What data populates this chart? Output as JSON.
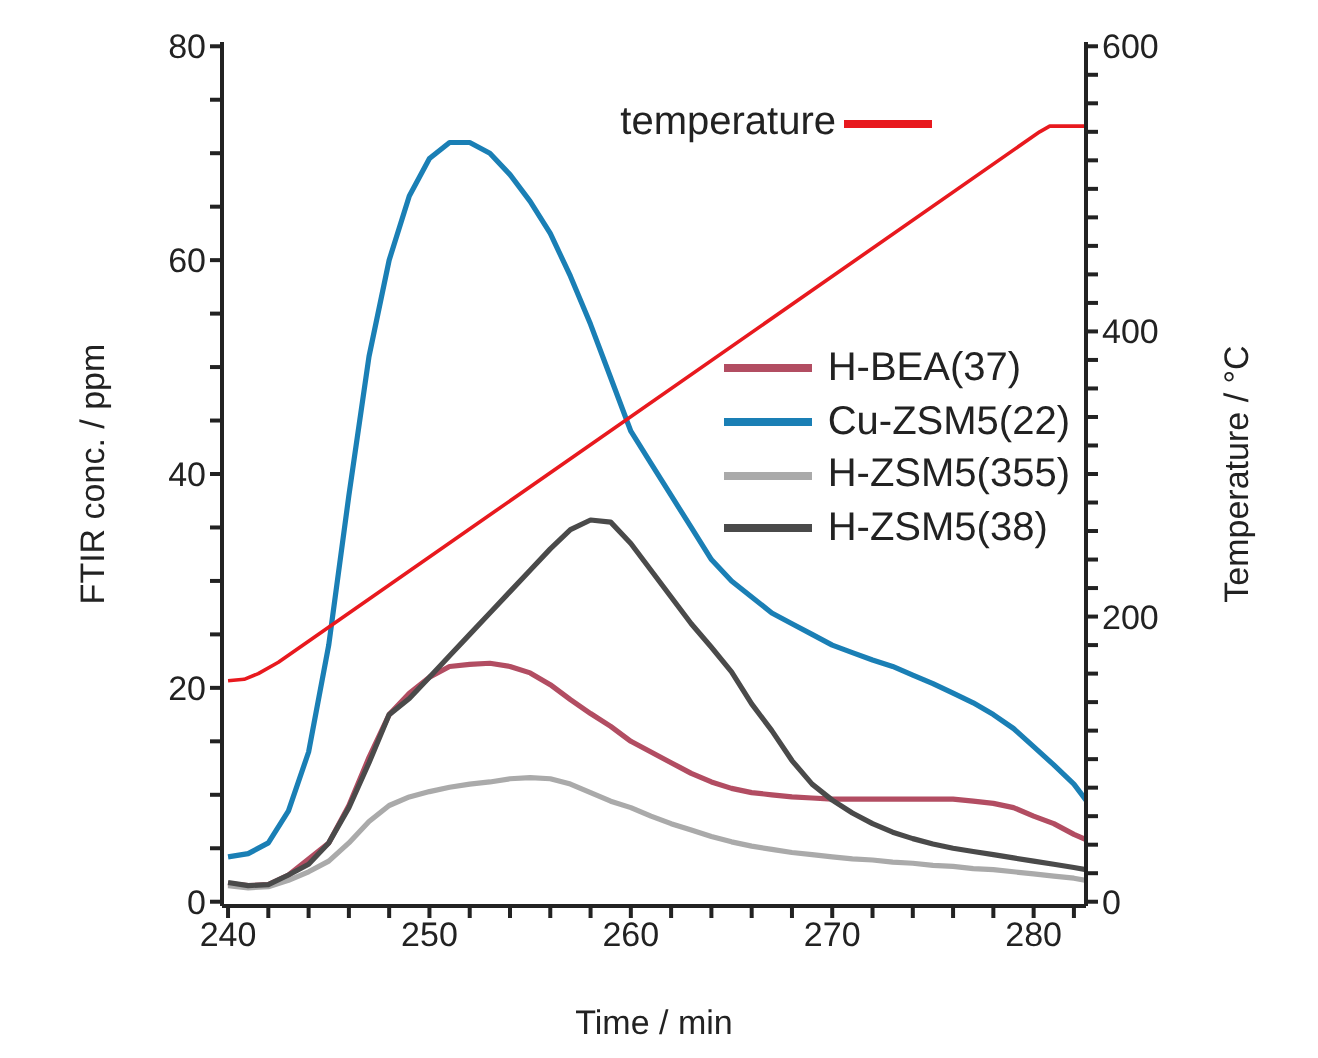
{
  "chart_data": {
    "type": "line",
    "xlabel": "Time / min",
    "ylabel": "FTIR conc. / ppm",
    "y2label": "Temperature / °C",
    "xlim": [
      239.7,
      282.6
    ],
    "ylim": [
      -0.4,
      80.4
    ],
    "y2lim": [
      -3,
      603
    ],
    "xticks": [
      240,
      {
        "value": 242,
        "label": null
      },
      {
        "value": 244,
        "label": null
      },
      {
        "value": 246,
        "label": null
      },
      {
        "value": 248,
        "label": null
      },
      250,
      {
        "value": 252,
        "label": null
      },
      {
        "value": 254,
        "label": null
      },
      {
        "value": 256,
        "label": null
      },
      {
        "value": 258,
        "label": null
      },
      260,
      {
        "value": 262,
        "label": null
      },
      {
        "value": 264,
        "label": null
      },
      {
        "value": 266,
        "label": null
      },
      {
        "value": 268,
        "label": null
      },
      270,
      {
        "value": 272,
        "label": null
      },
      {
        "value": 274,
        "label": null
      },
      {
        "value": 276,
        "label": null
      },
      {
        "value": 278,
        "label": null
      },
      280,
      {
        "value": 282,
        "label": null
      }
    ],
    "yticks": [
      0,
      {
        "value": 5,
        "label": null
      },
      {
        "value": 10,
        "label": null
      },
      {
        "value": 15,
        "label": null
      },
      20,
      {
        "value": 25,
        "label": null
      },
      {
        "value": 30,
        "label": null
      },
      {
        "value": 35,
        "label": null
      },
      40,
      {
        "value": 45,
        "label": null
      },
      {
        "value": 50,
        "label": null
      },
      {
        "value": 55,
        "label": null
      },
      60,
      {
        "value": 65,
        "label": null
      },
      {
        "value": 70,
        "label": null
      },
      {
        "value": 75,
        "label": null
      },
      80
    ],
    "y2ticks": [
      0,
      {
        "value": 20,
        "label": null
      },
      {
        "value": 40,
        "label": null
      },
      {
        "value": 60,
        "label": null
      },
      {
        "value": 80,
        "label": null
      },
      {
        "value": 100,
        "label": null
      },
      {
        "value": 120,
        "label": null
      },
      {
        "value": 140,
        "label": null
      },
      {
        "value": 160,
        "label": null
      },
      {
        "value": 180,
        "label": null
      },
      200,
      {
        "value": 220,
        "label": null
      },
      {
        "value": 240,
        "label": null
      },
      {
        "value": 260,
        "label": null
      },
      {
        "value": 280,
        "label": null
      },
      {
        "value": 300,
        "label": null
      },
      {
        "value": 320,
        "label": null
      },
      {
        "value": 340,
        "label": null
      },
      {
        "value": 360,
        "label": null
      },
      {
        "value": 380,
        "label": null
      },
      400,
      {
        "value": 420,
        "label": null
      },
      {
        "value": 440,
        "label": null
      },
      {
        "value": 460,
        "label": null
      },
      {
        "value": 480,
        "label": null
      },
      {
        "value": 500,
        "label": null
      },
      {
        "value": 520,
        "label": null
      },
      {
        "value": 540,
        "label": null
      },
      {
        "value": 560,
        "label": null
      },
      {
        "value": 580,
        "label": null
      },
      600
    ],
    "legend": "right",
    "marker": "none",
    "grid": false,
    "x": [
      240,
      241,
      242,
      243,
      244,
      245,
      246,
      247,
      248,
      249,
      250,
      251,
      252,
      253,
      254,
      255,
      256,
      257,
      258,
      259,
      260,
      261,
      262,
      263,
      264,
      265,
      266,
      267,
      268,
      269,
      270,
      271,
      272,
      273,
      274,
      275,
      276,
      277,
      278,
      279,
      280,
      281,
      282,
      282.6
    ],
    "series": [
      {
        "name": "H-BEA(37)",
        "color": "#b24d62",
        "values": [
          1.7,
          1.5,
          1.6,
          2.5,
          4,
          5.5,
          9,
          13.5,
          17.5,
          19.5,
          21,
          22,
          22.2,
          22.3,
          22,
          21.4,
          20.3,
          18.9,
          17.6,
          16.4,
          15,
          14,
          13,
          12,
          11.2,
          10.6,
          10.2,
          10,
          9.8,
          9.7,
          9.6,
          9.6,
          9.6,
          9.6,
          9.6,
          9.6,
          9.6,
          9.4,
          9.2,
          8.8,
          8,
          7.3,
          6.3,
          5.8
        ]
      },
      {
        "name": "Cu-ZSM5(22)",
        "color": "#1a7fb5",
        "values": [
          4.2,
          4.5,
          5.5,
          8.5,
          14,
          24,
          38,
          51,
          60,
          66,
          69.5,
          71,
          71,
          70,
          68,
          65.5,
          62.5,
          58.5,
          54,
          49,
          44,
          41,
          38,
          35,
          32,
          30,
          28.5,
          27,
          26,
          25,
          24,
          23.3,
          22.6,
          22,
          21.2,
          20.4,
          19.5,
          18.6,
          17.5,
          16.2,
          14.5,
          12.8,
          11,
          9.5
        ]
      },
      {
        "name": "H-ZSM5(355)",
        "color": "#aaaaaa",
        "values": [
          1.5,
          1.3,
          1.4,
          2,
          2.8,
          3.8,
          5.5,
          7.5,
          9,
          9.8,
          10.3,
          10.7,
          11,
          11.2,
          11.5,
          11.6,
          11.5,
          11,
          10.2,
          9.4,
          8.8,
          8,
          7.3,
          6.7,
          6.1,
          5.6,
          5.2,
          4.9,
          4.6,
          4.4,
          4.2,
          4,
          3.9,
          3.7,
          3.6,
          3.4,
          3.3,
          3.1,
          3,
          2.8,
          2.6,
          2.4,
          2.2,
          2
        ]
      },
      {
        "name": "H-ZSM5(38)",
        "color": "#4a4a4a",
        "values": [
          1.8,
          1.5,
          1.6,
          2.5,
          3.5,
          5.5,
          8.8,
          13,
          17.5,
          19,
          21,
          23,
          25,
          27,
          29,
          31,
          33,
          34.8,
          35.7,
          35.5,
          33.5,
          31,
          28.5,
          26,
          23.8,
          21.5,
          18.5,
          16,
          13.2,
          11,
          9.5,
          8.3,
          7.3,
          6.5,
          5.9,
          5.4,
          5,
          4.7,
          4.4,
          4.1,
          3.8,
          3.5,
          3.2,
          3
        ]
      },
      {
        "name": "temperature",
        "color": "#e8191e",
        "axis": "y2",
        "x": [
          240,
          240.8,
          241.5,
          242.5,
          280.3,
          280.8,
          282.6
        ],
        "values": [
          155,
          156,
          160,
          168,
          540,
          544,
          544
        ]
      }
    ]
  }
}
